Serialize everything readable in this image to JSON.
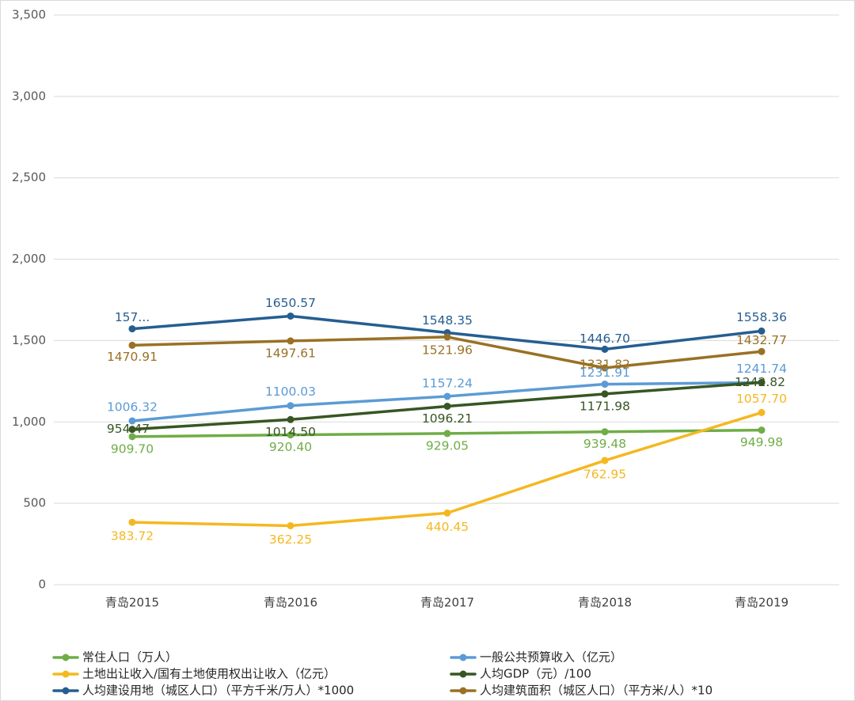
{
  "chart_data": {
    "type": "line",
    "categories": [
      "青岛2015",
      "青岛2016",
      "青岛2017",
      "青岛2018",
      "青岛2019"
    ],
    "ylim": [
      0,
      3500
    ],
    "yticks": [
      "0",
      "500",
      "1,000",
      "1,500",
      "2,000",
      "2,500",
      "3,000",
      "3,500"
    ],
    "ytick_values": [
      0,
      500,
      1000,
      1500,
      2000,
      2500,
      3000,
      3500
    ],
    "grid": true,
    "legend_position": "bottom",
    "series": [
      {
        "name": "常住人口（万人）",
        "color": "#70ad47",
        "values": [
          909.7,
          920.4,
          929.05,
          939.48,
          949.98
        ],
        "labels": [
          "909.70",
          "920.40",
          "929.05",
          "939.48",
          "949.98"
        ]
      },
      {
        "name": "一般公共预算收入（亿元）",
        "color": "#5b9bd5",
        "values": [
          1006.32,
          1100.03,
          1157.24,
          1231.91,
          1241.74
        ],
        "labels": [
          "1006.32",
          "1100.03",
          "1157.24",
          "1231.91",
          "1241.74"
        ]
      },
      {
        "name": "土地出让收入/国有土地使用权出让收入（亿元）",
        "color": "#f4b820",
        "values": [
          383.72,
          362.25,
          440.45,
          762.95,
          1057.7
        ],
        "labels": [
          "383.72",
          "362.25",
          "440.45",
          "762.95",
          "1057.70"
        ]
      },
      {
        "name": "人均GDP（元）/100",
        "color": "#375623",
        "values": [
          954.47,
          1014.5,
          1096.21,
          1171.98,
          1242.82
        ],
        "labels": [
          "954.47",
          "1014.50",
          "1096.21",
          "1171.98",
          "1242.82"
        ]
      },
      {
        "name": "人均建设用地（城区人口）（平方千米/万人）*1000",
        "color": "#255e91",
        "values": [
          1572,
          1650.57,
          1548.35,
          1446.7,
          1558.36
        ],
        "labels": [
          "157...",
          "1650.57",
          "1548.35",
          "1446.70",
          "1558.36"
        ]
      },
      {
        "name": "人均建筑面积（城区人口）（平方米/人）*10",
        "color": "#997125",
        "values": [
          1470.91,
          1497.61,
          1521.96,
          1331.82,
          1432.77
        ],
        "labels": [
          "1470.91",
          "1497.61",
          "1521.96",
          "1331.82",
          "1432.77"
        ]
      }
    ]
  }
}
